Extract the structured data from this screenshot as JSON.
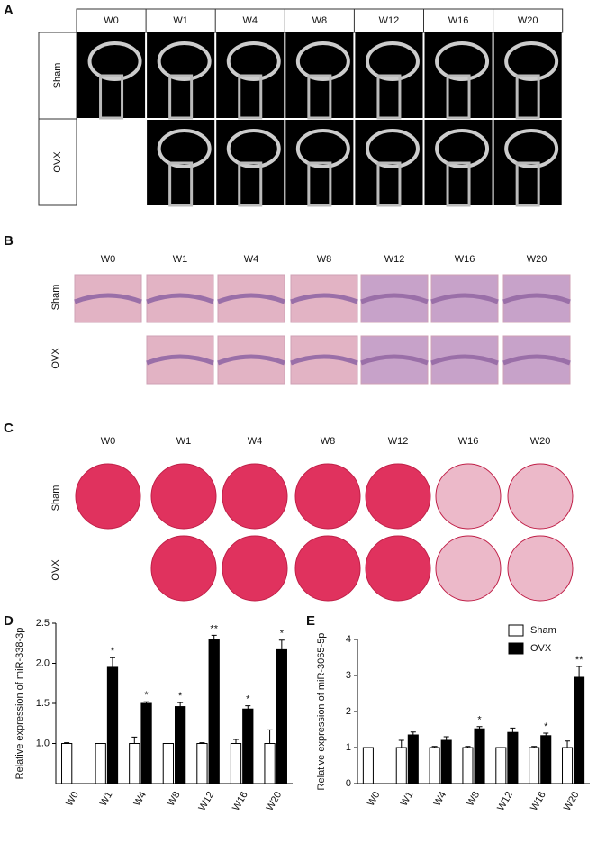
{
  "panel_a": {
    "label": "A",
    "columns": [
      "W0",
      "W1",
      "W4",
      "W8",
      "W12",
      "W16",
      "W20"
    ],
    "rows": [
      "Sham",
      "OVX"
    ]
  },
  "panel_b": {
    "label": "B",
    "columns": [
      "W0",
      "W1",
      "W4",
      "W8",
      "W12",
      "W16",
      "W20"
    ],
    "rows": [
      "Sham",
      "OVX"
    ]
  },
  "panel_c": {
    "label": "C",
    "columns": [
      "W0",
      "W1",
      "W4",
      "W8",
      "W12",
      "W16",
      "W20"
    ],
    "rows": [
      "Sham",
      "OVX"
    ]
  },
  "chart_data": [
    {
      "type": "bar",
      "panel_label": "D",
      "y_label": "Relative expression of miR-338-3p",
      "categories": [
        "W0",
        "W1",
        "W4",
        "W8",
        "W12",
        "W16",
        "W20"
      ],
      "ylim": [
        0.5,
        2.5
      ],
      "yticks": [
        {
          "value": 1,
          "label": "1.0"
        },
        1.5,
        {
          "value": 2,
          "label": "2.0"
        },
        2.5
      ],
      "series": [
        {
          "name": "Sham",
          "color": "#ffffff",
          "values": [
            1,
            1,
            1,
            1,
            1,
            1,
            1
          ],
          "errors": [
            0.01,
            0,
            0.08,
            0,
            0.01,
            0.05,
            0.17
          ],
          "annotations": [
            null,
            null,
            null,
            null,
            null,
            null,
            null
          ]
        },
        {
          "name": "OVX",
          "color": "#000000",
          "values": [
            null,
            1.95,
            1.5,
            1.46,
            2.3,
            1.43,
            2.17
          ],
          "errors": [
            null,
            0.12,
            0.02,
            0.05,
            0.05,
            0.04,
            0.12
          ],
          "annotations": [
            null,
            "*",
            "*",
            "*",
            "**",
            "*",
            "*"
          ]
        }
      ]
    },
    {
      "type": "bar",
      "panel_label": "E",
      "y_label": "Relative expression of miR-3065-5p",
      "categories": [
        "W0",
        "W1",
        "W4",
        "W8",
        "W12",
        "W16",
        "W20"
      ],
      "ylim": [
        0,
        4
      ],
      "yticks": [
        0,
        1,
        2,
        3,
        4
      ],
      "legend": "top-right",
      "series": [
        {
          "name": "Sham",
          "color": "#ffffff",
          "values": [
            1,
            1,
            1,
            1,
            1,
            1,
            1
          ],
          "errors": [
            0,
            0.2,
            0.03,
            0.03,
            0,
            0.03,
            0.18
          ],
          "annotations": [
            null,
            null,
            null,
            null,
            null,
            null,
            null
          ]
        },
        {
          "name": "OVX",
          "color": "#000000",
          "values": [
            null,
            1.35,
            1.2,
            1.52,
            1.42,
            1.33,
            2.95
          ],
          "errors": [
            null,
            0.08,
            0.1,
            0.06,
            0.12,
            0.07,
            0.3
          ],
          "annotations": [
            null,
            null,
            null,
            "*",
            null,
            "*",
            "**"
          ]
        }
      ]
    }
  ]
}
